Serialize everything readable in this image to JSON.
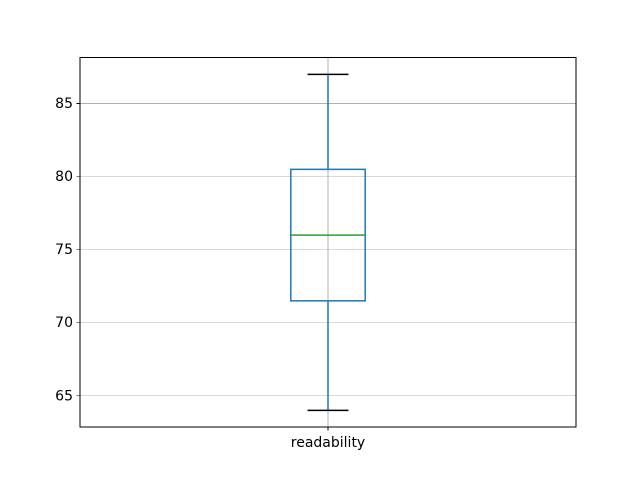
{
  "chart_data": {
    "type": "boxplot",
    "title": "",
    "xlabel": "",
    "ylabel": "",
    "categories": [
      "readability"
    ],
    "positions": [
      1
    ],
    "stats": [
      {
        "label": "readability",
        "whislo": 64,
        "q1": 71.5,
        "med": 76,
        "q3": 80.5,
        "whishi": 87,
        "fliers": []
      }
    ],
    "yticks": [
      65,
      70,
      75,
      80,
      85
    ],
    "ylim": [
      62.85,
      88.15
    ],
    "xlim": [
      0.5,
      1.5
    ],
    "grid": true,
    "legend": null,
    "box_width": 0.15,
    "cap_width": 0.0825,
    "colors": {
      "box": "#1f77b4",
      "whisker": "#1f77b4",
      "median": "#2ca02c",
      "cap": "#000000",
      "grid": "#b0b0b0",
      "spine": "#000000",
      "tick": "#000000",
      "tick_label": "#000000",
      "background": "#ffffff"
    }
  }
}
